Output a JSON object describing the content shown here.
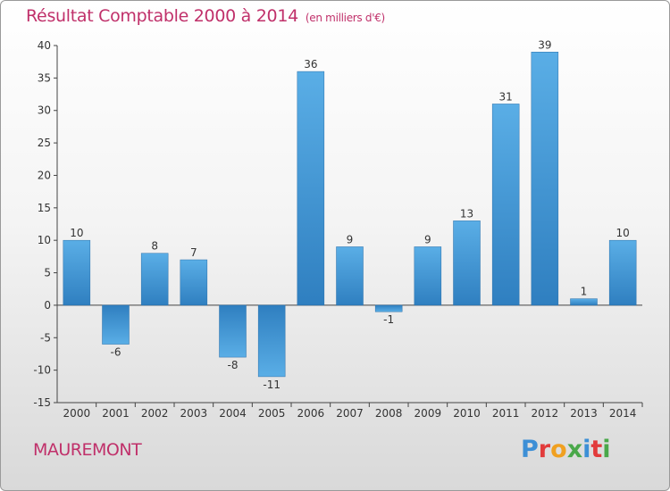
{
  "title": "Résultat Comptable 2000 à 2014",
  "subtitle": "(en milliers d'€)",
  "town": "MAUREMONT",
  "logo": {
    "letters": [
      "P",
      "r",
      "o",
      "x",
      "i",
      "t",
      "i"
    ],
    "colors": [
      "#3d8fd6",
      "#e23b3b",
      "#f0a020",
      "#4aa84a",
      "#3d8fd6",
      "#e23b3b",
      "#4aa84a"
    ]
  },
  "colors": {
    "title": "#c0306a",
    "bar_light": "#5aaee6",
    "bar_dark": "#2f7fc0"
  },
  "chart_data": {
    "type": "bar",
    "title": "Résultat Comptable 2000 à 2014",
    "xlabel": "",
    "ylabel": "",
    "ylim": [
      -15,
      40
    ],
    "yticks": [
      40,
      35,
      30,
      25,
      20,
      15,
      10,
      5,
      0,
      -5,
      -10,
      -15
    ],
    "categories": [
      "2000",
      "2001",
      "2002",
      "2003",
      "2004",
      "2005",
      "2006",
      "2007",
      "2008",
      "2009",
      "2010",
      "2011",
      "2012",
      "2013",
      "2014"
    ],
    "values": [
      10,
      -6,
      8,
      7,
      -8,
      -11,
      36,
      9,
      -1,
      9,
      13,
      31,
      39,
      1,
      10
    ]
  }
}
